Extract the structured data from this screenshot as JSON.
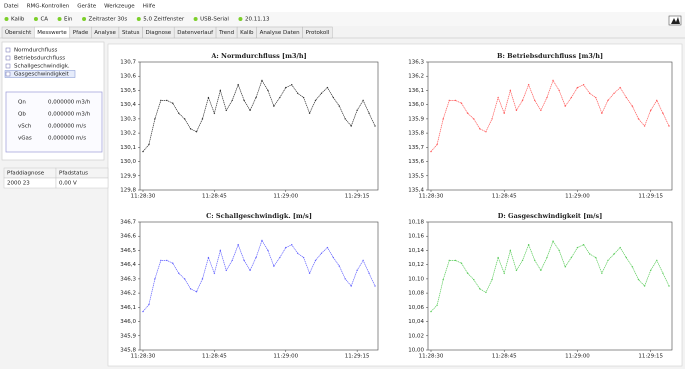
{
  "menu": [
    "Datei",
    "RMG-Kontrollen",
    "Geräte",
    "Werkzeuge",
    "Hilfe"
  ],
  "toolbar": [
    "Kalib",
    "CA",
    "Ein",
    "Zeitraster 30s",
    "5,0 Zeitfenster",
    "USB-Serial",
    "20.11.13"
  ],
  "tabs": [
    "Übersicht",
    "Messwerte",
    "Pfade",
    "Analyse",
    "Status",
    "Diagnose",
    "Datenverlauf",
    "Trend",
    "Kalib",
    "Analyse Daten",
    "Protokoll"
  ],
  "tree": [
    "Normdurchfluss",
    "Betriebsdurchfluss",
    "Schallgeschwindigk.",
    "Gasgeschwindigkeit"
  ],
  "readings": {
    "rows": [
      [
        "Qn",
        "0,000000 m3/h"
      ],
      [
        "Qb",
        "0,000000 m3/h"
      ],
      [
        "vSch",
        "0,000000 m/s"
      ],
      [
        "vGas",
        "0,000000 m/s"
      ]
    ]
  },
  "status_table": {
    "header": [
      "Pfaddiagnose",
      "Pfadstatus"
    ],
    "row": [
      "2000 23",
      "0,00 V"
    ]
  },
  "chart_data": [
    {
      "type": "line",
      "title": "A: Normdurchfluss [m3/h]",
      "color": "#333333",
      "grid": false,
      "categories": [
        "11:28:30",
        null,
        null,
        null,
        null,
        null,
        null,
        null,
        null,
        null,
        null,
        null,
        "11:28:45",
        null,
        null,
        null,
        null,
        null,
        null,
        null,
        null,
        null,
        null,
        null,
        "11:29:00",
        null,
        null,
        null,
        null,
        null,
        null,
        null,
        null,
        null,
        null,
        null,
        "11:29:15",
        null,
        null,
        null
      ],
      "values": [
        130.07,
        130.12,
        130.3,
        130.43,
        130.43,
        130.41,
        130.34,
        130.3,
        130.23,
        130.21,
        130.3,
        130.45,
        130.34,
        130.5,
        130.36,
        130.43,
        130.54,
        130.43,
        130.36,
        130.45,
        130.57,
        130.5,
        130.39,
        130.45,
        130.52,
        130.54,
        130.48,
        130.45,
        130.34,
        130.43,
        130.48,
        130.52,
        130.45,
        130.39,
        130.3,
        130.25,
        130.36,
        130.43,
        130.34,
        130.25
      ],
      "ylim": [
        129.8,
        130.7
      ],
      "yticks": [
        {
          "value": 129.8,
          "label": "129,8"
        },
        {
          "value": 129.9,
          "label": "129,9"
        },
        {
          "value": 130.0,
          "label": "130,0"
        },
        {
          "value": 130.1,
          "label": "130,1"
        },
        {
          "value": 130.2,
          "label": "130,2"
        },
        {
          "value": 130.3,
          "label": "130,3"
        },
        {
          "value": 130.4,
          "label": "130,4"
        },
        {
          "value": 130.5,
          "label": "130,5"
        },
        {
          "value": 130.6,
          "label": "130,6"
        },
        {
          "value": 130.7,
          "label": "130,7"
        }
      ]
    },
    {
      "type": "line",
      "title": "B: Betriebsdurchfluss [m3/h]",
      "color": "#ff5a5a",
      "grid": false,
      "categories": [
        "11:28:30",
        null,
        null,
        null,
        null,
        null,
        null,
        null,
        null,
        null,
        null,
        null,
        "11:28:45",
        null,
        null,
        null,
        null,
        null,
        null,
        null,
        null,
        null,
        null,
        null,
        "11:29:00",
        null,
        null,
        null,
        null,
        null,
        null,
        null,
        null,
        null,
        null,
        null,
        "11:29:15",
        null,
        null,
        null
      ],
      "values": [
        135.67,
        135.72,
        135.9,
        136.03,
        136.03,
        136.01,
        135.94,
        135.9,
        135.83,
        135.81,
        135.9,
        136.05,
        135.94,
        136.1,
        135.96,
        136.03,
        136.14,
        136.03,
        135.96,
        136.05,
        136.17,
        136.1,
        135.99,
        136.05,
        136.12,
        136.14,
        136.08,
        136.05,
        135.94,
        136.03,
        136.08,
        136.12,
        136.05,
        135.99,
        135.9,
        135.85,
        135.96,
        136.03,
        135.94,
        135.85
      ],
      "ylim": [
        135.4,
        136.3
      ],
      "yticks": [
        {
          "value": 135.4,
          "label": "135,4"
        },
        {
          "value": 135.5,
          "label": "135,5"
        },
        {
          "value": 135.6,
          "label": "135,6"
        },
        {
          "value": 135.7,
          "label": "135,7"
        },
        {
          "value": 135.8,
          "label": "135,8"
        },
        {
          "value": 135.9,
          "label": "135,9"
        },
        {
          "value": 136.0,
          "label": "136,0"
        },
        {
          "value": 136.1,
          "label": "136,1"
        },
        {
          "value": 136.2,
          "label": "136,2"
        },
        {
          "value": 136.3,
          "label": "136,3"
        }
      ]
    },
    {
      "type": "line",
      "title": "C: Schallgeschwindigk. [m/s]",
      "color": "#6464ff",
      "grid": false,
      "categories": [
        "11:28:30",
        null,
        null,
        null,
        null,
        null,
        null,
        null,
        null,
        null,
        null,
        null,
        "11:28:45",
        null,
        null,
        null,
        null,
        null,
        null,
        null,
        null,
        null,
        null,
        null,
        "11:29:00",
        null,
        null,
        null,
        null,
        null,
        null,
        null,
        null,
        null,
        null,
        null,
        "11:29:15",
        null,
        null,
        null
      ],
      "values": [
        346.07,
        346.12,
        346.3,
        346.43,
        346.43,
        346.41,
        346.34,
        346.3,
        346.23,
        346.21,
        346.3,
        346.45,
        346.34,
        346.5,
        346.36,
        346.43,
        346.54,
        346.43,
        346.36,
        346.45,
        346.57,
        346.5,
        346.39,
        346.45,
        346.52,
        346.54,
        346.48,
        346.45,
        346.34,
        346.43,
        346.48,
        346.52,
        346.45,
        346.39,
        346.3,
        346.25,
        346.36,
        346.43,
        346.34,
        346.25
      ],
      "ylim": [
        345.8,
        346.7
      ],
      "yticks": [
        {
          "value": 345.8,
          "label": "345,8"
        },
        {
          "value": 345.9,
          "label": "345,9"
        },
        {
          "value": 346.0,
          "label": "346,0"
        },
        {
          "value": 346.1,
          "label": "346,1"
        },
        {
          "value": 346.2,
          "label": "346,2"
        },
        {
          "value": 346.3,
          "label": "346,3"
        },
        {
          "value": 346.4,
          "label": "346,4"
        },
        {
          "value": 346.5,
          "label": "346,5"
        },
        {
          "value": 346.6,
          "label": "346,6"
        },
        {
          "value": 346.7,
          "label": "346,7"
        }
      ]
    },
    {
      "type": "line",
      "title": "D: Gasgeschwindigkeit [m/s]",
      "color": "#5ccc5c",
      "grid": false,
      "categories": [
        "11:28:30",
        null,
        null,
        null,
        null,
        null,
        null,
        null,
        null,
        null,
        null,
        null,
        "11:28:45",
        null,
        null,
        null,
        null,
        null,
        null,
        null,
        null,
        null,
        null,
        null,
        "11:29:00",
        null,
        null,
        null,
        null,
        null,
        null,
        null,
        null,
        null,
        null,
        null,
        "11:29:15",
        null,
        null,
        null
      ],
      "values": [
        10.054,
        10.063,
        10.099,
        10.126,
        10.126,
        10.122,
        10.108,
        10.099,
        10.086,
        10.081,
        10.099,
        10.13,
        10.108,
        10.14,
        10.112,
        10.126,
        10.148,
        10.126,
        10.112,
        10.13,
        10.153,
        10.14,
        10.117,
        10.13,
        10.144,
        10.148,
        10.135,
        10.13,
        10.108,
        10.126,
        10.135,
        10.144,
        10.13,
        10.117,
        10.099,
        10.09,
        10.112,
        10.126,
        10.108,
        10.09
      ],
      "ylim": [
        10.0,
        10.18
      ],
      "yticks": [
        {
          "value": 10.0,
          "label": "10,00"
        },
        {
          "value": 10.02,
          "label": "10,02"
        },
        {
          "value": 10.04,
          "label": "10,04"
        },
        {
          "value": 10.06,
          "label": "10,06"
        },
        {
          "value": 10.08,
          "label": "10,08"
        },
        {
          "value": 10.1,
          "label": "10,10"
        },
        {
          "value": 10.12,
          "label": "10,12"
        },
        {
          "value": 10.14,
          "label": "10,14"
        },
        {
          "value": 10.16,
          "label": "10,16"
        },
        {
          "value": 10.18,
          "label": "10,18"
        }
      ]
    }
  ]
}
